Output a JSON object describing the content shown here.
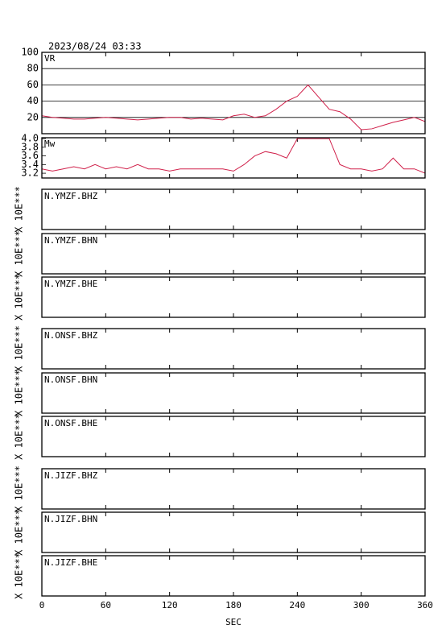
{
  "timestamp": "2023/08/24 03:33",
  "chart_data": [
    {
      "type": "line",
      "x": [
        0,
        10,
        20,
        30,
        40,
        50,
        60,
        70,
        80,
        90,
        100,
        110,
        120,
        130,
        140,
        150,
        160,
        170,
        180,
        190,
        200,
        210,
        220,
        230,
        240,
        250,
        260,
        270,
        280,
        290,
        300,
        310,
        320,
        330,
        340,
        350,
        360
      ],
      "series": [
        {
          "name": "VR",
          "color": "#d0204a",
          "values": [
            22,
            20,
            19,
            18,
            18,
            19,
            20,
            19,
            18,
            17,
            18,
            19,
            20,
            20,
            18,
            19,
            18,
            17,
            22,
            24,
            20,
            22,
            30,
            40,
            46,
            60,
            45,
            30,
            27,
            18,
            5,
            6,
            10,
            14,
            17,
            20,
            15
          ]
        }
      ],
      "ylim": [
        0,
        100
      ],
      "yticks": [
        20,
        40,
        60,
        80,
        100
      ],
      "grid": true
    },
    {
      "type": "line",
      "x": [
        0,
        10,
        20,
        30,
        40,
        50,
        60,
        70,
        80,
        90,
        100,
        110,
        120,
        130,
        140,
        150,
        160,
        170,
        180,
        190,
        200,
        210,
        220,
        230,
        240,
        250,
        260,
        270,
        280,
        290,
        300,
        310,
        320,
        330,
        340,
        350,
        360
      ],
      "series": [
        {
          "name": "Mw",
          "color": "#d0204a",
          "values": [
            3.3,
            3.25,
            3.3,
            3.35,
            3.3,
            3.4,
            3.3,
            3.35,
            3.3,
            3.4,
            3.3,
            3.3,
            3.25,
            3.3,
            3.3,
            3.3,
            3.3,
            3.3,
            3.25,
            3.4,
            3.6,
            3.7,
            3.65,
            3.55,
            4.0,
            4.0,
            4.0,
            4.0,
            3.4,
            3.3,
            3.3,
            3.25,
            3.3,
            3.55,
            3.3,
            3.3,
            3.2
          ]
        }
      ],
      "ylim": [
        3.09,
        4.02
      ],
      "yticks": [
        {
          "value": 3.2,
          "label": "3.2"
        },
        {
          "value": 3.4,
          "label": "3.4"
        },
        {
          "value": 3.6,
          "label": "3.6"
        },
        {
          "value": 3.8,
          "label": "3.8"
        },
        {
          "value": 4,
          "label": "4.0"
        }
      ],
      "grid": false
    }
  ],
  "traces": [
    {
      "label": "N.YMZF.BHZ",
      "scale_label": "X 10E***"
    },
    {
      "label": "N.YMZF.BHN",
      "scale_label": "X 10E***"
    },
    {
      "label": "N.YMZF.BHE",
      "scale_label": "X 10E***"
    },
    {
      "label": "N.ONSF.BHZ",
      "scale_label": "X 10E***"
    },
    {
      "label": "N.ONSF.BHN",
      "scale_label": "X 10E***"
    },
    {
      "label": "N.ONSF.BHE",
      "scale_label": "X 10E***"
    },
    {
      "label": "N.JIZF.BHZ",
      "scale_label": "X 10E***"
    },
    {
      "label": "N.JIZF.BHN",
      "scale_label": "X 10E***"
    },
    {
      "label": "N.JIZF.BHE",
      "scale_label": "X 10E***"
    }
  ],
  "x_axis": {
    "label": "SEC",
    "xlim": [
      0,
      360
    ],
    "xticks": [
      0,
      60,
      120,
      180,
      240,
      300,
      360
    ]
  }
}
